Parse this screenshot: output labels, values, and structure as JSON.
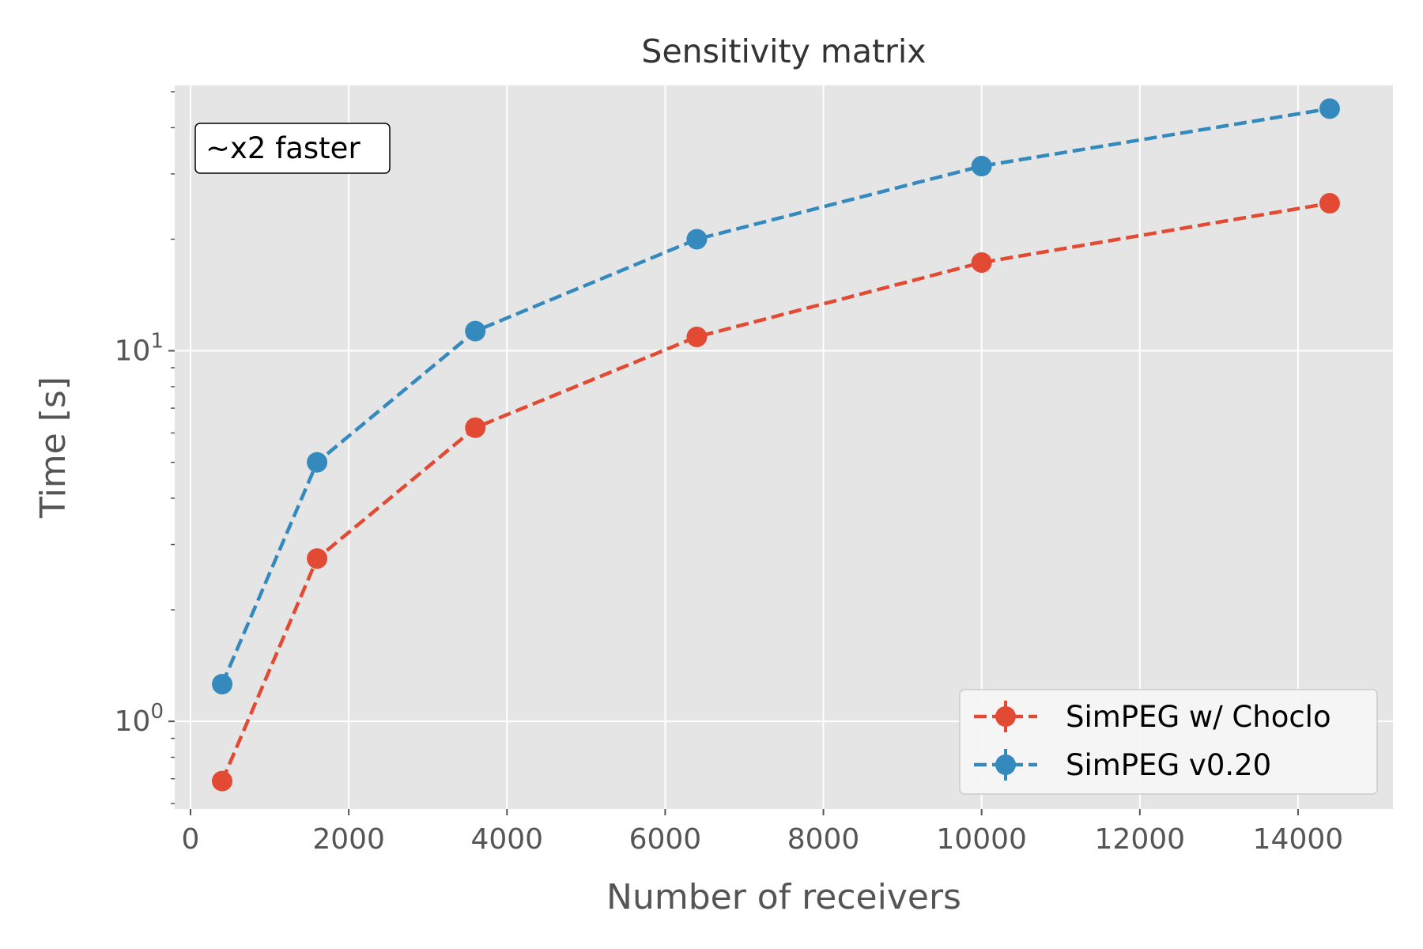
{
  "chart_data": {
    "type": "line",
    "title": "Sensitivity matrix",
    "xlabel": "Number of receivers",
    "ylabel": "Time [s]",
    "x": [
      400,
      1600,
      3600,
      6400,
      10000,
      14400
    ],
    "series": [
      {
        "name": "SimPEG w/ Choclo",
        "color": "#E24A33",
        "values": [
          0.69,
          2.75,
          6.2,
          10.9,
          17.3,
          25.0
        ]
      },
      {
        "name": "SimPEG v0.20",
        "color": "#348ABD",
        "values": [
          1.26,
          5.0,
          11.3,
          20.0,
          31.5,
          45.0
        ]
      }
    ],
    "xlim": [
      -200,
      15200
    ],
    "ylim": [
      0.58,
      52
    ],
    "yscale": "log",
    "xticks": [
      0,
      2000,
      4000,
      6000,
      8000,
      10000,
      12000,
      14000
    ],
    "xtick_labels": [
      "0",
      "2000",
      "4000",
      "6000",
      "8000",
      "10000",
      "12000",
      "14000"
    ],
    "yticks": [
      {
        "value": 1,
        "base": "10",
        "exp": "0"
      },
      {
        "value": 10,
        "base": "10",
        "exp": "1"
      }
    ],
    "grid": true,
    "legend_position": "bottom-right",
    "annotation": "~x2 faster",
    "line_style": "dashed",
    "marker": "circle",
    "background": "#E5E5E5"
  }
}
